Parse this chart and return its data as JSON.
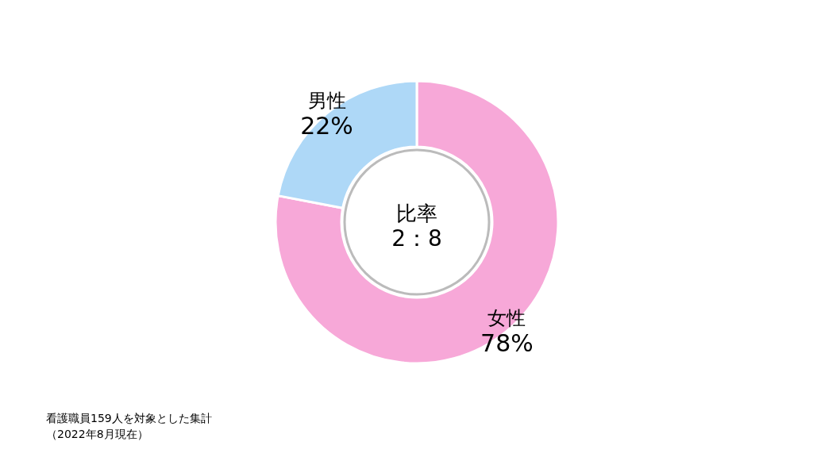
{
  "chart_data": {
    "type": "donut",
    "categories": [
      "女性",
      "男性"
    ],
    "values": [
      78,
      22
    ],
    "colors": [
      "#f7a8d8",
      "#aed8f7"
    ],
    "value_labels": [
      "78%",
      "22%"
    ],
    "annotations": [
      "比率",
      "2：8",
      "看護職員159人を対象とした集計",
      "（2022年8月現在）"
    ]
  }
}
